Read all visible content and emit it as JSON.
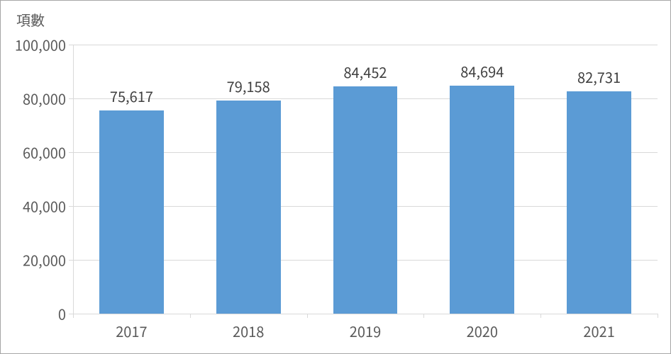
{
  "chart": {
    "type": "bar",
    "y_axis_title": "項數",
    "categories": [
      "2017",
      "2018",
      "2019",
      "2020",
      "2021"
    ],
    "values": [
      75617,
      79158,
      84452,
      84694,
      82731
    ],
    "value_labels": [
      "75,617",
      "79,158",
      "84,452",
      "84,694",
      "82,731"
    ],
    "bar_color": "#5b9bd5",
    "ylim": [
      0,
      100000
    ],
    "ytick_step": 20000,
    "ytick_labels": [
      "0",
      "20,000",
      "40,000",
      "60,000",
      "80,000",
      "100,000"
    ],
    "background_color": "#ffffff",
    "grid_color": "#d9d9d9",
    "axis_color": "#d9d9d9",
    "text_color": "#595959",
    "label_fontsize": 20,
    "bar_width_ratio": 0.55,
    "border_color": "#a6a6a6"
  }
}
